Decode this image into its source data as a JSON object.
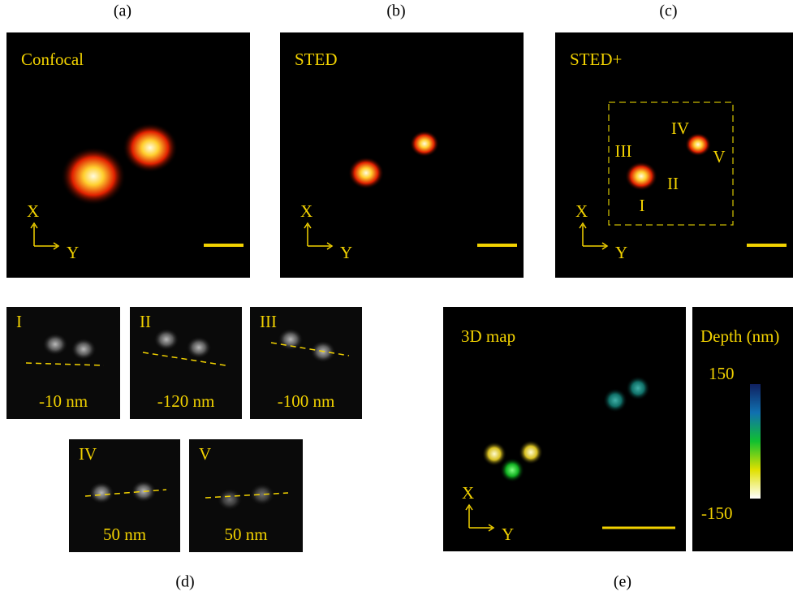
{
  "panels": [
    {
      "label": "(a)",
      "title": "Confocal",
      "axes": [
        "X",
        "Y"
      ]
    },
    {
      "label": "(b)",
      "title": "STED",
      "axes": [
        "X",
        "Y"
      ]
    },
    {
      "label": "(c)",
      "title": "STED+",
      "axes": [
        "X",
        "Y"
      ],
      "spots": [
        "IV",
        "V",
        "III",
        "II",
        "I"
      ]
    }
  ],
  "panel_d": {
    "label": "(d)",
    "insets": [
      {
        "name": "I",
        "depth": "-10 nm"
      },
      {
        "name": "II",
        "depth": "-120 nm"
      },
      {
        "name": "III",
        "depth": "-100 nm"
      },
      {
        "name": "IV",
        "depth": "50 nm"
      },
      {
        "name": "V",
        "depth": "50 nm"
      }
    ]
  },
  "panel_e": {
    "label": "(e)",
    "title": "3D map",
    "axes": [
      "X",
      "Y"
    ],
    "colorbar": {
      "title": "Depth (nm)",
      "max": 150,
      "min": -150
    }
  }
}
